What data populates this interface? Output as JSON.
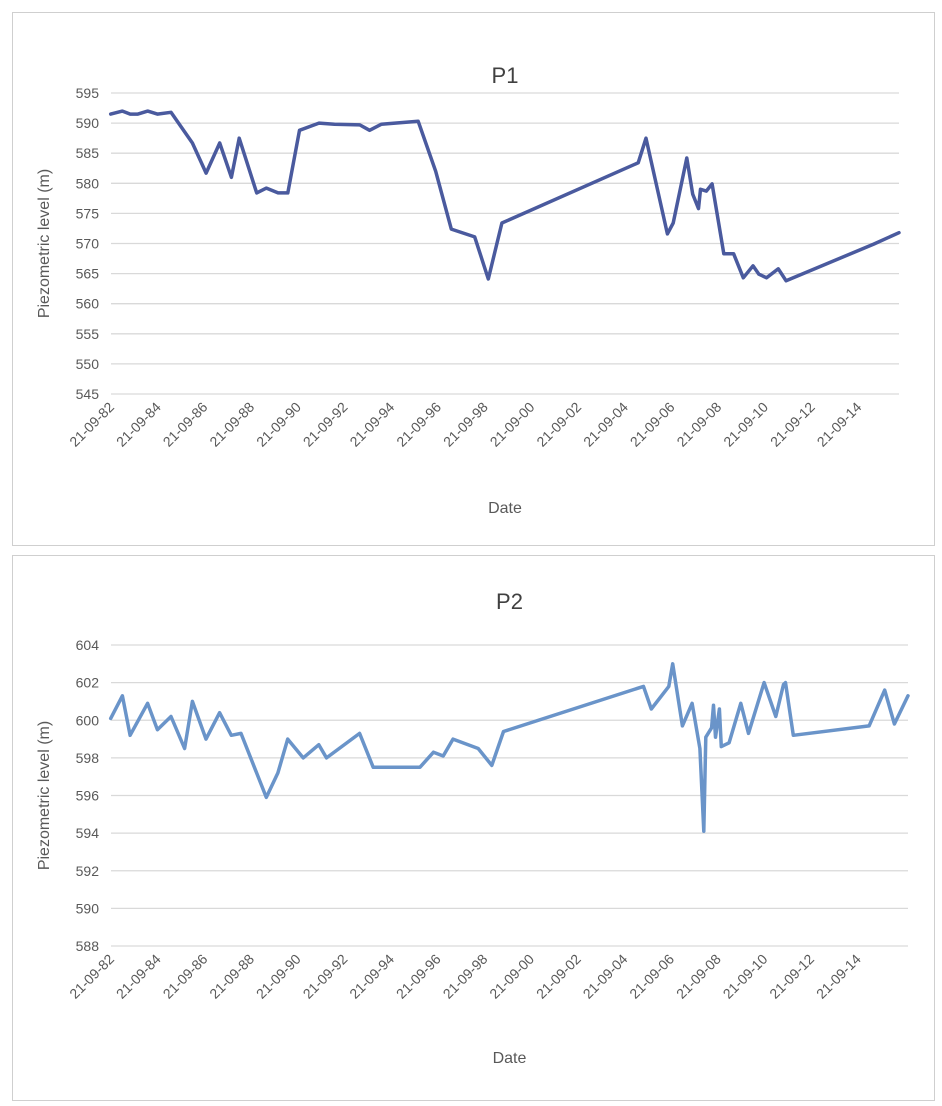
{
  "chart_data": [
    {
      "type": "line",
      "title": "P1",
      "xlabel": "Date",
      "ylabel": "Piezometric level (m)",
      "ylim": [
        545,
        595
      ],
      "yticks": [
        545,
        550,
        555,
        560,
        565,
        570,
        575,
        580,
        585,
        590,
        595
      ],
      "xlim": [
        "1982-09-21",
        "2016-06"
      ],
      "xtick_dates": [
        "1982-09-21",
        "1984-09-21",
        "1986-09-21",
        "1988-09-21",
        "1990-09-21",
        "1992-09-21",
        "1994-09-21",
        "1996-09-21",
        "1998-09-21",
        "2000-09-21",
        "2002-09-21",
        "2004-09-21",
        "2006-09-21",
        "2008-09-21",
        "2010-09-21",
        "2012-09-21",
        "2014-09-21"
      ],
      "xtick_labels": [
        "21-09-82",
        "21-09-84",
        "21-09-86",
        "21-09-88",
        "21-09-90",
        "21-09-92",
        "21-09-94",
        "21-09-96",
        "21-09-98",
        "21-09-00",
        "21-09-02",
        "21-09-04",
        "21-09-06",
        "21-09-08",
        "21-09-10",
        "21-09-12",
        "21-09-14"
      ],
      "grid": true,
      "line_color": "#4a5a9e",
      "x": [
        "1982-09",
        "1983-03",
        "1983-07",
        "1983-11",
        "1984-04",
        "1984-09",
        "1985-04",
        "1986-03",
        "1986-10",
        "1987-05",
        "1987-11",
        "1988-03",
        "1988-12",
        "1989-05",
        "1989-11",
        "1990-04",
        "1990-10",
        "1991-08",
        "1992-04",
        "1993-05",
        "1993-10",
        "1994-04",
        "1995-11",
        "1996-08",
        "1997-04",
        "1998-04",
        "1998-11",
        "1999-06",
        "2005-04",
        "2005-08",
        "2006-07",
        "2006-10",
        "2007-05",
        "2007-08",
        "2007-11",
        "2007-12",
        "2008-03",
        "2008-06",
        "2008-12",
        "2009-05",
        "2009-10",
        "2010-03",
        "2010-06",
        "2010-10",
        "2011-04",
        "2011-08",
        "2015-05",
        "2016-06"
      ],
      "y": [
        591.5,
        592,
        591.5,
        591.5,
        592,
        591.5,
        591.8,
        586.7,
        581.7,
        586.7,
        581,
        587.5,
        578.4,
        579.2,
        578.4,
        578.4,
        588.8,
        590,
        589.8,
        589.7,
        588.8,
        589.8,
        590.3,
        582,
        572.4,
        571.1,
        564.1,
        573.4,
        583.4,
        587.5,
        571.6,
        573.4,
        584.2,
        578.2,
        575.8,
        579,
        578.7,
        579.9,
        568.3,
        568.3,
        564.3,
        566.3,
        564.9,
        564.3,
        565.8,
        563.8,
        569.9,
        571.8
      ]
    },
    {
      "type": "line",
      "title": "P2",
      "xlabel": "Date",
      "ylabel": "Piezometric level (m)",
      "ylim": [
        588,
        604
      ],
      "yticks": [
        588,
        590,
        592,
        594,
        596,
        598,
        600,
        602,
        604
      ],
      "xlim": [
        "1982-09-21",
        "2016-11"
      ],
      "xtick_dates": [
        "1982-09-21",
        "1984-09-21",
        "1986-09-21",
        "1988-09-21",
        "1990-09-21",
        "1992-09-21",
        "1994-09-21",
        "1996-09-21",
        "1998-09-21",
        "2000-09-21",
        "2002-09-21",
        "2004-09-21",
        "2006-09-21",
        "2008-09-21",
        "2010-09-21",
        "2012-09-21",
        "2014-09-21"
      ],
      "xtick_labels": [
        "21-09-82",
        "21-09-84",
        "21-09-86",
        "21-09-88",
        "21-09-90",
        "21-09-92",
        "21-09-94",
        "21-09-96",
        "21-09-98",
        "21-09-00",
        "21-09-02",
        "21-09-04",
        "21-09-06",
        "21-09-08",
        "21-09-10",
        "21-09-12",
        "21-09-14"
      ],
      "grid": true,
      "line_color": "#6a94c9",
      "x": [
        "1982-09",
        "1983-03",
        "1983-07",
        "1984-04",
        "1984-09",
        "1985-04",
        "1985-11",
        "1986-03",
        "1986-10",
        "1987-05",
        "1987-11",
        "1988-04",
        "1989-05",
        "1989-11",
        "1990-04",
        "1990-12",
        "1991-08",
        "1991-12",
        "1993-05",
        "1993-12",
        "1995-12",
        "1996-07",
        "1996-12",
        "1997-05",
        "1998-06",
        "1999-01",
        "1999-07",
        "2005-07",
        "2005-11",
        "2006-08",
        "2006-10",
        "2007-03",
        "2007-08",
        "2007-12",
        "2008-02",
        "2008-03",
        "2008-06",
        "2008-07",
        "2008-08",
        "2008-10",
        "2008-11",
        "2009-03",
        "2009-09",
        "2010-01",
        "2010-09",
        "2011-03",
        "2011-07",
        "2011-08",
        "2011-12",
        "2015-03",
        "2015-11",
        "2016-04",
        "2016-11"
      ],
      "y": [
        600.1,
        601.3,
        599.2,
        600.9,
        599.5,
        600.2,
        598.5,
        601.0,
        599.0,
        600.4,
        599.2,
        599.3,
        595.9,
        597.2,
        599.0,
        598.0,
        598.7,
        598.0,
        599.3,
        597.5,
        597.5,
        598.3,
        598.1,
        599.0,
        598.5,
        597.6,
        599.4,
        601.8,
        600.6,
        601.8,
        603.0,
        599.7,
        600.9,
        598.5,
        594.1,
        599.1,
        599.6,
        600.8,
        599.1,
        600.6,
        598.6,
        598.8,
        600.9,
        599.3,
        602.0,
        600.2,
        601.9,
        602.0,
        599.2,
        599.7,
        601.6,
        599.8,
        601.3
      ]
    }
  ]
}
